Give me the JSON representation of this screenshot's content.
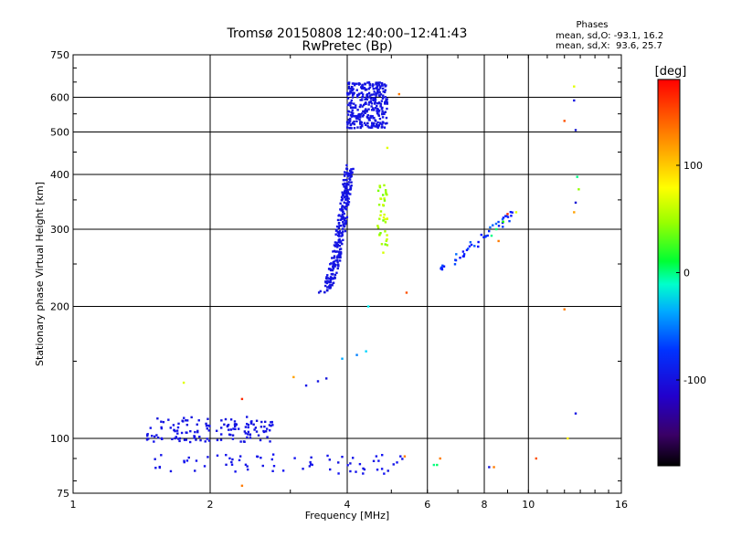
{
  "chart_data": {
    "type": "scatter",
    "title": "Tromsø 20150808 12:40:00–12:41:43",
    "subtitle": "RwPretec (Bp)",
    "stats": {
      "heading": "Phases",
      "line1": "mean, sd,O: -93.1, 16.2",
      "line2": "mean, sd,X:  93.6, 25.7"
    },
    "xlabel": "Frequency [MHz]",
    "ylabel": "Stationary phase Virtual Height [km]",
    "x_scale": "log",
    "y_scale": "log",
    "xlim": [
      1,
      16
    ],
    "ylim": [
      75,
      750
    ],
    "x_ticks": [
      1,
      2,
      4,
      6,
      8,
      10,
      16
    ],
    "x_tick_labels": [
      "1",
      "2",
      "4",
      "6",
      "8",
      "10",
      "16"
    ],
    "y_ticks": [
      75,
      100,
      200,
      300,
      400,
      500,
      600,
      750
    ],
    "y_tick_labels": [
      "75",
      "100",
      "200",
      "300",
      "400",
      "500",
      "600",
      "750"
    ],
    "grid": true,
    "colorbar": {
      "label": "[deg]",
      "min": -180,
      "max": 180,
      "ticks": [
        100,
        0,
        -100
      ],
      "tick_labels": [
        "100",
        "0",
        "-100"
      ]
    },
    "clusters": [
      {
        "name_hint": "E-region trace",
        "x_range": [
          1.45,
          2.75
        ],
        "y_range": [
          98,
          112
        ],
        "count": 140,
        "phase": -108
      },
      {
        "name_hint": "sporadic lower",
        "x_range": [
          1.5,
          5.3
        ],
        "y_range": [
          83,
          92
        ],
        "count": 70,
        "phase": -100
      },
      {
        "name_hint": "F-region O trace",
        "x_range": [
          3.55,
          4.05
        ],
        "y_range": [
          215,
          420
        ],
        "count": 260,
        "phase": -110
      },
      {
        "name_hint": "F-region cusp",
        "x_range": [
          4.0,
          4.9
        ],
        "y_range": [
          510,
          650
        ],
        "count": 320,
        "phase": -112
      },
      {
        "name_hint": "X trace",
        "x_range": [
          4.65,
          4.9
        ],
        "y_range": [
          265,
          380
        ],
        "count": 40,
        "phase": 95
      },
      {
        "name_hint": "higher freq trace",
        "x_range": [
          6.2,
          9.3
        ],
        "y_range": [
          235,
          325
        ],
        "count": 45,
        "phase": -60
      }
    ],
    "points": [
      {
        "x": 5.2,
        "y": 610,
        "phase": 150
      },
      {
        "x": 4.9,
        "y": 460,
        "phase": 110
      },
      {
        "x": 5.4,
        "y": 215,
        "phase": 160
      },
      {
        "x": 4.45,
        "y": 200,
        "phase": -10
      },
      {
        "x": 4.4,
        "y": 158,
        "phase": -20
      },
      {
        "x": 4.2,
        "y": 155,
        "phase": -40
      },
      {
        "x": 3.9,
        "y": 152,
        "phase": -30
      },
      {
        "x": 3.6,
        "y": 137,
        "phase": -120
      },
      {
        "x": 3.45,
        "y": 135,
        "phase": -110
      },
      {
        "x": 3.25,
        "y": 132,
        "phase": -100
      },
      {
        "x": 3.05,
        "y": 138,
        "phase": 140
      },
      {
        "x": 2.35,
        "y": 123,
        "phase": 170
      },
      {
        "x": 1.75,
        "y": 134,
        "phase": 110
      },
      {
        "x": 2.35,
        "y": 78,
        "phase": 150
      },
      {
        "x": 5.35,
        "y": 91,
        "phase": 150
      },
      {
        "x": 6.4,
        "y": 90,
        "phase": 150
      },
      {
        "x": 6.3,
        "y": 87,
        "phase": 30
      },
      {
        "x": 6.2,
        "y": 87,
        "phase": 20
      },
      {
        "x": 8.4,
        "y": 86,
        "phase": 150
      },
      {
        "x": 8.2,
        "y": 86,
        "phase": -120
      },
      {
        "x": 10.4,
        "y": 90,
        "phase": 160
      },
      {
        "x": 12.2,
        "y": 100,
        "phase": 120
      },
      {
        "x": 12.0,
        "y": 197,
        "phase": 150
      },
      {
        "x": 12.0,
        "y": 530,
        "phase": 160
      },
      {
        "x": 12.6,
        "y": 635,
        "phase": 110
      },
      {
        "x": 12.6,
        "y": 590,
        "phase": -110
      },
      {
        "x": 12.7,
        "y": 505,
        "phase": -130
      },
      {
        "x": 12.8,
        "y": 395,
        "phase": 20
      },
      {
        "x": 12.9,
        "y": 370,
        "phase": 90
      },
      {
        "x": 12.7,
        "y": 345,
        "phase": -130
      },
      {
        "x": 12.6,
        "y": 328,
        "phase": 140
      },
      {
        "x": 12.7,
        "y": 114,
        "phase": -110
      },
      {
        "x": 9.0,
        "y": 325,
        "phase": 170
      },
      {
        "x": 9.4,
        "y": 328,
        "phase": 110
      },
      {
        "x": 8.8,
        "y": 312,
        "phase": 60
      },
      {
        "x": 8.5,
        "y": 300,
        "phase": 30
      },
      {
        "x": 8.3,
        "y": 290,
        "phase": 20
      },
      {
        "x": 8.6,
        "y": 282,
        "phase": 150
      }
    ]
  }
}
